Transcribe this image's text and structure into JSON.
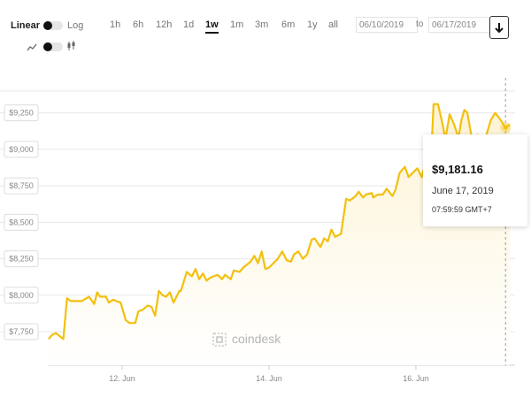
{
  "controls": {
    "scale_linear": "Linear",
    "scale_log": "Log",
    "ranges": [
      "1h",
      "6h",
      "12h",
      "1d",
      "1w",
      "1m",
      "3m",
      "6m",
      "1y",
      "all"
    ],
    "active_range": "1w",
    "date_from": "06/10/2019",
    "date_to": "06/17/2019",
    "to_label": "to",
    "download_icon": "download-arrow-icon",
    "line_icon": "line-chart-icon",
    "candle_icon": "candlestick-icon"
  },
  "tooltip": {
    "price": "$9,181.16",
    "date": "June 17, 2019",
    "time": "07:59:59 GMT+7"
  },
  "watermark": {
    "text": "coindesk",
    "icon": "coindesk-logo-icon"
  },
  "colors": {
    "line": "#f2c00f",
    "area_top": "#fdf3d4",
    "grid": "#e8e8e8",
    "axis_text": "#888888"
  },
  "chart_data": {
    "type": "area",
    "title": "",
    "xlabel": "",
    "ylabel": "",
    "yticks": [
      "$7,750",
      "$8,000",
      "$8,250",
      "$8,500",
      "$8,750",
      "$9,000",
      "$9,250"
    ],
    "ytick_values": [
      7750,
      8000,
      8250,
      8500,
      8750,
      9000,
      9250
    ],
    "xticks": [
      "12. Jun",
      "14. Jun",
      "16. Jun"
    ],
    "xtick_values": [
      12,
      14,
      16
    ],
    "xlim": [
      11.0,
      17.35
    ],
    "ylim": [
      7520,
      9490
    ],
    "grid": true,
    "x": [
      11.0,
      11.05,
      11.1,
      11.15,
      11.2,
      11.25,
      11.3,
      11.36,
      11.45,
      11.55,
      11.62,
      11.66,
      11.7,
      11.78,
      11.82,
      11.88,
      11.92,
      11.98,
      12.05,
      12.1,
      12.18,
      12.22,
      12.28,
      12.35,
      12.4,
      12.45,
      12.5,
      12.55,
      12.6,
      12.65,
      12.7,
      12.78,
      12.8,
      12.88,
      12.95,
      13.0,
      13.05,
      13.1,
      13.15,
      13.2,
      13.3,
      13.36,
      13.4,
      13.48,
      13.52,
      13.6,
      13.65,
      13.75,
      13.8,
      13.85,
      13.9,
      13.95,
      14.0,
      14.08,
      14.12,
      14.18,
      14.24,
      14.3,
      14.34,
      14.4,
      14.46,
      14.52,
      14.58,
      14.62,
      14.7,
      14.75,
      14.8,
      14.85,
      14.9,
      14.98,
      15.05,
      15.1,
      15.18,
      15.22,
      15.28,
      15.32,
      15.4,
      15.42,
      15.48,
      15.55,
      15.6,
      15.68,
      15.72,
      15.78,
      15.85,
      15.9,
      15.96,
      16.02,
      16.08,
      16.12,
      16.2,
      16.24,
      16.3,
      16.36,
      16.4,
      16.46,
      16.52,
      16.58,
      16.62,
      16.66,
      16.7,
      16.76,
      16.84,
      16.9,
      16.96,
      17.02,
      17.08,
      17.14,
      17.22,
      17.28
    ],
    "y": [
      7700,
      7730,
      7740,
      7720,
      7700,
      7980,
      7960,
      7960,
      7960,
      7990,
      7940,
      8020,
      7990,
      7990,
      7950,
      7970,
      7960,
      7950,
      7830,
      7810,
      7810,
      7890,
      7900,
      7930,
      7920,
      7860,
      8030,
      8000,
      7990,
      8020,
      7950,
      8030,
      8030,
      8160,
      8130,
      8180,
      8110,
      8150,
      8100,
      8120,
      8140,
      8110,
      8140,
      8110,
      8170,
      8160,
      8190,
      8230,
      8270,
      8220,
      8300,
      8180,
      8190,
      8230,
      8250,
      8300,
      8240,
      8230,
      8280,
      8300,
      8250,
      8280,
      8380,
      8390,
      8330,
      8390,
      8370,
      8450,
      8400,
      8420,
      8660,
      8650,
      8680,
      8710,
      8670,
      8690,
      8700,
      8670,
      8690,
      8690,
      8730,
      8680,
      8720,
      8840,
      8880,
      8810,
      8840,
      8870,
      8810,
      8890,
      8870,
      9310,
      9310,
      9180,
      9070,
      9240,
      9170,
      9080,
      9200,
      9270,
      9250,
      9080,
      9100,
      9070,
      9100,
      9200,
      9250,
      9210,
      9150,
      9170
    ]
  }
}
